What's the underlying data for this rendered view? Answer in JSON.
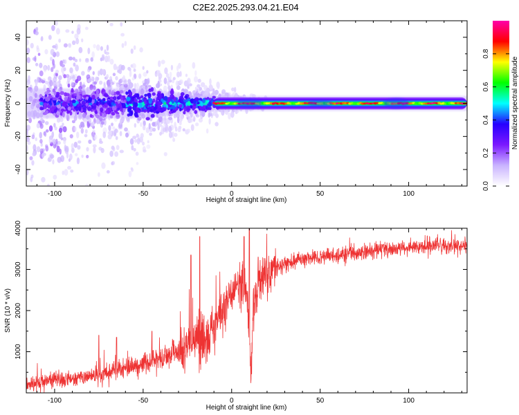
{
  "title": "C2E2.2025.293.04.21.E04",
  "colors": {
    "snr_line": "#ee3333",
    "axis": "#000000",
    "background": "#ffffff"
  },
  "chart_data": [
    {
      "type": "heatmap",
      "name": "spectrogram",
      "xlabel": "Height of straight line (km)",
      "ylabel": "Frequency (Hz)",
      "xlim": [
        -116,
        133
      ],
      "ylim": [
        -50,
        50
      ],
      "xticks": [
        -100,
        -50,
        0,
        50,
        100
      ],
      "yticks": [
        -40,
        -20,
        0,
        20,
        40
      ],
      "grid": false,
      "colorbar": {
        "label": "Normalized spectral amplitude",
        "range": [
          0,
          1
        ],
        "ticks": [
          0.0,
          0.2,
          0.4,
          0.6,
          0.8
        ],
        "colormap": [
          "#ffffff",
          "#c9b3ff",
          "#7b18ff",
          "#2600ff",
          "#00ffff",
          "#00ff00",
          "#ffff00",
          "#ff0000",
          "#ff00aa"
        ]
      },
      "description_of_structure": {
        "carrier_frequency_hz": 0,
        "noisy_region_km": [
          -116,
          -10
        ],
        "clean_band_region_km": [
          -10,
          133
        ],
        "band_halfwidth_hz_clean": 3,
        "broadband_spread_hz_far_negative": 50
      }
    },
    {
      "type": "line",
      "name": "snr",
      "xlabel": "Height of straight line (km)",
      "ylabel": "SNR (10 * v/v)",
      "xlim": [
        -116,
        133
      ],
      "ylim": [
        0,
        4000
      ],
      "xticks": [
        -100,
        -50,
        0,
        50,
        100
      ],
      "yticks": [
        1000,
        2000,
        3000,
        4000
      ],
      "grid": false,
      "series": [
        {
          "name": "SNR",
          "x": [
            -116,
            -100,
            -90,
            -80,
            -70,
            -60,
            -50,
            -40,
            -30,
            -20,
            -15,
            -10,
            -5,
            0,
            5,
            8,
            10,
            11,
            12,
            15,
            20,
            25,
            30,
            40,
            50,
            60,
            70,
            80,
            90,
            100,
            110,
            120,
            133
          ],
          "y": [
            200,
            300,
            350,
            400,
            500,
            600,
            700,
            850,
            1000,
            1300,
            1200,
            1600,
            2000,
            2400,
            2700,
            2500,
            1500,
            300,
            2000,
            2700,
            2900,
            3000,
            3150,
            3250,
            3300,
            3350,
            3400,
            3450,
            3500,
            3530,
            3560,
            3580,
            3600
          ],
          "spikes": [
            {
              "x": -75,
              "y": 1400
            },
            {
              "x": -65,
              "y": 1350
            },
            {
              "x": -45,
              "y": 1500
            },
            {
              "x": -23,
              "y": 3350
            },
            {
              "x": -18,
              "y": 3800
            },
            {
              "x": 7,
              "y": 3800
            },
            {
              "x": 10,
              "y": 4000
            },
            {
              "x": 15,
              "y": 3300
            }
          ]
        }
      ]
    }
  ]
}
